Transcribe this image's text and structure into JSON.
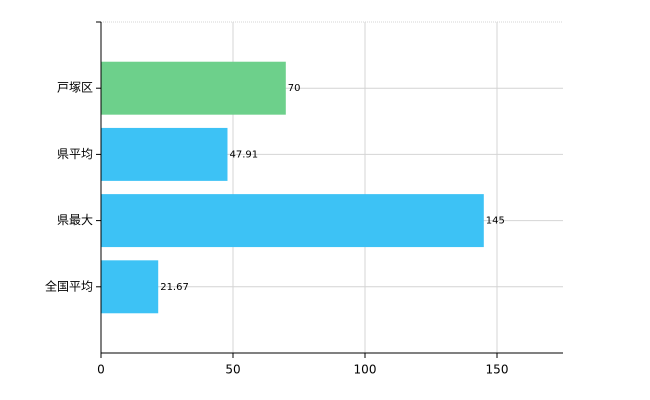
{
  "chart_data": {
    "type": "bar",
    "orientation": "horizontal",
    "categories": [
      "戸塚区",
      "県平均",
      "県最大",
      "全国平均"
    ],
    "values": [
      70,
      47.91,
      145,
      21.67
    ],
    "colors": [
      "#6dd08b",
      "#3dc2f5",
      "#3dc2f5",
      "#3dc2f5"
    ],
    "xlim": [
      0,
      175
    ],
    "xticks": [
      0,
      50,
      100,
      150
    ],
    "grid": true
  }
}
